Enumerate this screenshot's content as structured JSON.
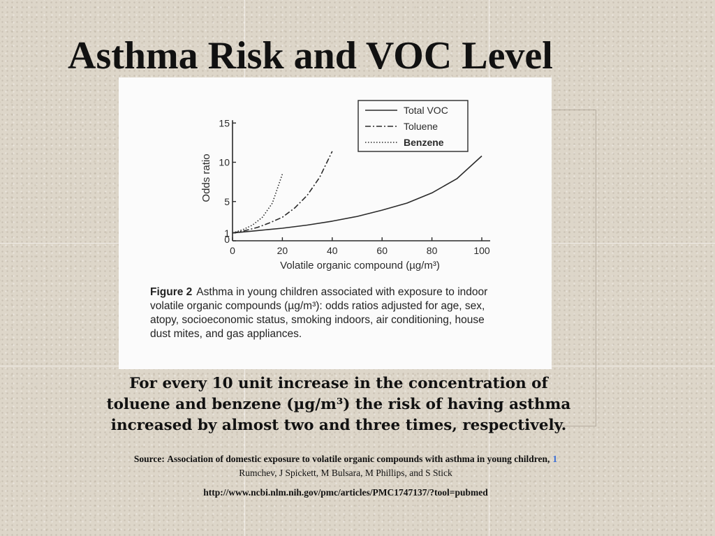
{
  "slide": {
    "title": "Asthma Risk and VOC Level",
    "summary_lines": [
      "For every 10 unit increase in the concentration of",
      "toluene and benzene (µg/m³) the risk of having asthma",
      "increased by almost two and three times, respectively."
    ],
    "source_label": "Source:",
    "source_title": "Association of domestic exposure to volatile organic compounds with asthma in young children,",
    "source_link": "1",
    "source_authors": "Rumchev, J Spickett, M Bulsara, M Phillips, and S Stick",
    "source_url": "http://www.ncbi.nlm.nih.gov/pmc/articles/PMC1747137/?tool=pubmed"
  },
  "figure": {
    "label": "Figure 2",
    "caption_lines": [
      "Asthma in young children associated with exposure to indoor",
      "volatile organic compounds (µg/m³): odds ratios adjusted for age, sex,",
      "atopy, socioeconomic status, smoking indoors, air conditioning, house",
      "dust mites, and gas appliances."
    ]
  },
  "chart_data": {
    "type": "line",
    "title": "",
    "xlabel": "Volatile organic compound (µg/m³)",
    "ylabel": "Odds ratio",
    "xlim": [
      0,
      100
    ],
    "ylim": [
      0,
      16
    ],
    "xticks": [
      0,
      20,
      40,
      60,
      80,
      100
    ],
    "yticks": [
      0,
      1,
      5,
      10,
      15
    ],
    "grid": false,
    "legend_position": "top-right",
    "series": [
      {
        "name": "Total VOC",
        "style": "solid",
        "x": [
          0,
          10,
          20,
          30,
          40,
          50,
          60,
          70,
          80,
          90,
          100
        ],
        "y": [
          1.0,
          1.3,
          1.6,
          2.0,
          2.5,
          3.1,
          3.9,
          4.8,
          6.1,
          7.9,
          10.8
        ]
      },
      {
        "name": "Toluene",
        "style": "dashdot",
        "x": [
          0,
          5,
          10,
          15,
          20,
          25,
          30,
          35,
          40
        ],
        "y": [
          1.0,
          1.3,
          1.7,
          2.3,
          3.0,
          4.2,
          5.8,
          8.1,
          11.4
        ]
      },
      {
        "name": "Benzene",
        "style": "dotted",
        "x": [
          0,
          4,
          8,
          12,
          16,
          20
        ],
        "y": [
          1.0,
          1.4,
          2.0,
          3.0,
          4.8,
          8.5
        ]
      }
    ]
  }
}
